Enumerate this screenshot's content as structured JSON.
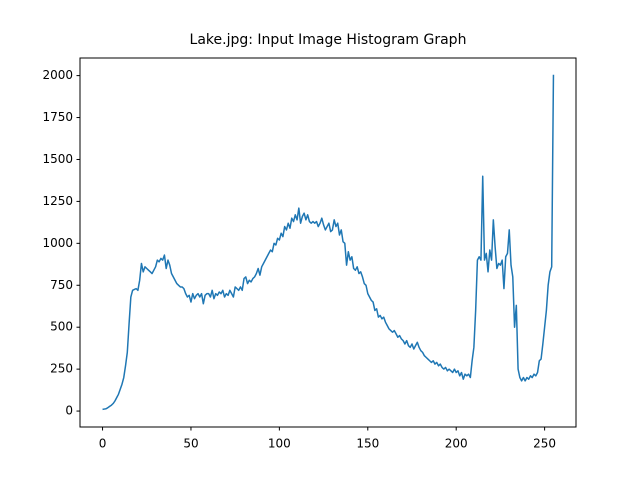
{
  "chart_data": {
    "type": "line",
    "title": "Lake.jpg: Input Image Histogram Graph",
    "x": [
      0,
      1,
      2,
      3,
      4,
      5,
      6,
      7,
      8,
      9,
      10,
      11,
      12,
      13,
      14,
      15,
      16,
      17,
      18,
      19,
      20,
      21,
      22,
      23,
      24,
      25,
      26,
      27,
      28,
      29,
      30,
      31,
      32,
      33,
      34,
      35,
      36,
      37,
      38,
      39,
      40,
      41,
      42,
      43,
      44,
      45,
      46,
      47,
      48,
      49,
      50,
      51,
      52,
      53,
      54,
      55,
      56,
      57,
      58,
      59,
      60,
      61,
      62,
      63,
      64,
      65,
      66,
      67,
      68,
      69,
      70,
      71,
      72,
      73,
      74,
      75,
      76,
      77,
      78,
      79,
      80,
      81,
      82,
      83,
      84,
      85,
      86,
      87,
      88,
      89,
      90,
      91,
      92,
      93,
      94,
      95,
      96,
      97,
      98,
      99,
      100,
      101,
      102,
      103,
      104,
      105,
      106,
      107,
      108,
      109,
      110,
      111,
      112,
      113,
      114,
      115,
      116,
      117,
      118,
      119,
      120,
      121,
      122,
      123,
      124,
      125,
      126,
      127,
      128,
      129,
      130,
      131,
      132,
      133,
      134,
      135,
      136,
      137,
      138,
      139,
      140,
      141,
      142,
      143,
      144,
      145,
      146,
      147,
      148,
      149,
      150,
      151,
      152,
      153,
      154,
      155,
      156,
      157,
      158,
      159,
      160,
      161,
      162,
      163,
      164,
      165,
      166,
      167,
      168,
      169,
      170,
      171,
      172,
      173,
      174,
      175,
      176,
      177,
      178,
      179,
      180,
      181,
      182,
      183,
      184,
      185,
      186,
      187,
      188,
      189,
      190,
      191,
      192,
      193,
      194,
      195,
      196,
      197,
      198,
      199,
      200,
      201,
      202,
      203,
      204,
      205,
      206,
      207,
      208,
      209,
      210,
      211,
      212,
      213,
      214,
      215,
      216,
      217,
      218,
      219,
      220,
      221,
      222,
      223,
      224,
      225,
      226,
      227,
      228,
      229,
      230,
      231,
      232,
      233,
      234,
      235,
      236,
      237,
      238,
      239,
      240,
      241,
      242,
      243,
      244,
      245,
      246,
      247,
      248,
      249,
      250,
      251,
      252,
      253,
      254,
      255
    ],
    "series": [
      {
        "color": "#1f77b4",
        "values": [
          10,
          12,
          14,
          20,
          28,
          35,
          45,
          60,
          80,
          100,
          130,
          160,
          200,
          270,
          350,
          520,
          680,
          720,
          725,
          730,
          720,
          780,
          880,
          830,
          860,
          850,
          840,
          830,
          820,
          840,
          860,
          900,
          890,
          910,
          900,
          930,
          850,
          900,
          870,
          820,
          800,
          780,
          760,
          750,
          740,
          740,
          730,
          700,
          680,
          690,
          650,
          700,
          670,
          690,
          700,
          680,
          700,
          640,
          690,
          700,
          700,
          680,
          720,
          670,
          700,
          690,
          710,
          700,
          720,
          680,
          700,
          690,
          720,
          700,
          680,
          740,
          730,
          720,
          740,
          720,
          790,
          800,
          760,
          780,
          770,
          790,
          800,
          820,
          850,
          810,
          860,
          880,
          900,
          920,
          940,
          960,
          950,
          1000,
          990,
          1030,
          1020,
          1060,
          1040,
          1100,
          1080,
          1120,
          1090,
          1150,
          1130,
          1170,
          1140,
          1210,
          1120,
          1160,
          1180,
          1140,
          1170,
          1130,
          1120,
          1130,
          1120,
          1130,
          1100,
          1120,
          1150,
          1110,
          1080,
          1100,
          1120,
          1070,
          1080,
          1140,
          1100,
          1120,
          1050,
          1080,
          1010,
          1000,
          870,
          950,
          900,
          920,
          850,
          840,
          860,
          820,
          830,
          800,
          760,
          750,
          700,
          680,
          660,
          650,
          600,
          610,
          560,
          570,
          550,
          560,
          530,
          510,
          490,
          480,
          470,
          480,
          460,
          440,
          450,
          430,
          420,
          400,
          420,
          390,
          380,
          400,
          370,
          390,
          410,
          380,
          360,
          350,
          330,
          320,
          310,
          300,
          290,
          300,
          280,
          290,
          270,
          280,
          260,
          250,
          260,
          240,
          250,
          240,
          230,
          250,
          230,
          240,
          210,
          230,
          190,
          220,
          210,
          220,
          200,
          300,
          380,
          600,
          900,
          920,
          900,
          1400,
          900,
          940,
          830,
          960,
          900,
          1140,
          980,
          850,
          880,
          870,
          900,
          730,
          920,
          940,
          1080,
          870,
          800,
          500,
          630,
          250,
          200,
          180,
          200,
          180,
          200,
          190,
          210,
          200,
          220,
          210,
          230,
          300,
          310,
          400,
          500,
          600,
          750,
          830,
          860,
          2005
        ]
      }
    ],
    "xlim": [
      -12.75,
      267.75
    ],
    "ylim": [
      -95,
      2105
    ],
    "xticks": [
      0,
      50,
      100,
      150,
      200,
      250
    ],
    "yticks": [
      0,
      250,
      500,
      750,
      1000,
      1250,
      1500,
      1750,
      2000
    ]
  }
}
